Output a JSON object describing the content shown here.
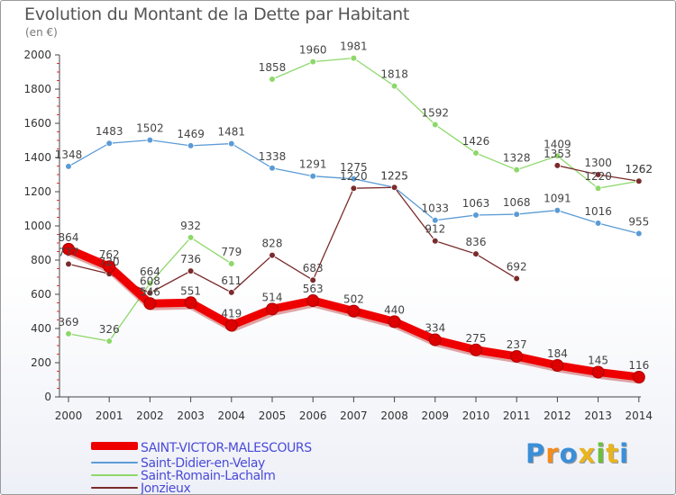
{
  "title": "Evolution du Montant de la Dette par Habitant",
  "unit_label": "(en €)",
  "logo": {
    "text": "Proxiti"
  },
  "chart_data": {
    "type": "line",
    "title": "Evolution du Montant de la Dette par Habitant",
    "subtitle": "(en €)",
    "x": [
      "2000",
      "2001",
      "2002",
      "2003",
      "2004",
      "2005",
      "2006",
      "2007",
      "2008",
      "2009",
      "2010",
      "2011",
      "2012",
      "2013",
      "2014"
    ],
    "ylim": [
      0,
      2000
    ],
    "yticks": [
      0,
      200,
      400,
      600,
      800,
      1000,
      1200,
      1400,
      1600,
      1800,
      2000
    ],
    "grid": false,
    "legend_position": "bottom-left",
    "series": [
      {
        "name": "SAINT-VICTOR-MALESCOURS",
        "color": "#ee0000",
        "highlight": true,
        "values": [
          864,
          762,
          546,
          551,
          419,
          514,
          563,
          502,
          440,
          334,
          275,
          237,
          184,
          145,
          116
        ],
        "labels": [
          "864",
          "762",
          "546",
          "551",
          "419",
          "514",
          "563",
          "502",
          "440",
          "334",
          "275",
          "237",
          "184",
          "145",
          "116"
        ]
      },
      {
        "name": "Saint-Didier-en-Velay",
        "color": "#5b9bd5",
        "values": [
          1348,
          1483,
          1502,
          1469,
          1481,
          1338,
          1291,
          1275,
          1225,
          1033,
          1063,
          1068,
          1091,
          1016,
          955
        ],
        "labels": [
          "1348",
          "1483",
          "1502",
          "1469",
          "1481",
          "1338",
          "1291",
          "1275",
          "1225",
          "1033",
          "1063",
          "1068",
          "1091",
          "1016",
          "955"
        ]
      },
      {
        "name": "Saint-Romain-Lachalm",
        "color": "#8ed86b",
        "values": [
          369,
          326,
          664,
          932,
          779,
          1858,
          1960,
          1981,
          1818,
          1592,
          1426,
          1328,
          1409,
          1220,
          1262
        ],
        "labels": [
          "369",
          "326",
          "664",
          "932",
          "779",
          "1858",
          "1960",
          "1981",
          "1818",
          "1592",
          "1426",
          "1328",
          "1409",
          "1220",
          "1262"
        ]
      },
      {
        "name": "Jonzieux",
        "color": "#7a2b2b",
        "values": [
          777,
          720,
          608,
          736,
          611,
          828,
          683,
          1220,
          1225,
          912,
          836,
          692,
          1353,
          1300,
          1262
        ],
        "labels": [
          "777",
          "720",
          "608",
          "736",
          "611",
          "828",
          "683",
          "1220",
          "1225",
          "912",
          "836",
          "692",
          "1353",
          "1300",
          "1262"
        ]
      }
    ]
  }
}
